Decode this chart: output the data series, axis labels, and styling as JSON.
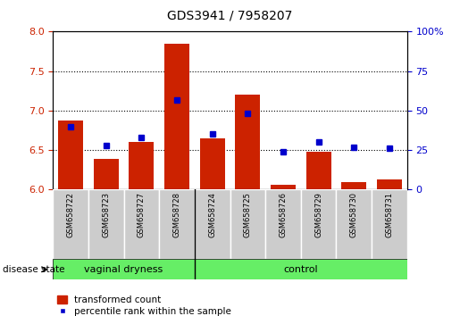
{
  "title": "GDS3941 / 7958207",
  "samples": [
    "GSM658722",
    "GSM658723",
    "GSM658727",
    "GSM658728",
    "GSM658724",
    "GSM658725",
    "GSM658726",
    "GSM658729",
    "GSM658730",
    "GSM658731"
  ],
  "transformed_count": [
    6.87,
    6.39,
    6.6,
    7.85,
    6.65,
    7.2,
    6.06,
    6.48,
    6.1,
    6.13
  ],
  "percentile_rank": [
    40,
    28,
    33,
    57,
    35,
    48,
    24,
    30,
    27,
    26
  ],
  "ylim_left": [
    6.0,
    8.0
  ],
  "ylim_right": [
    0,
    100
  ],
  "yticks_left": [
    6.0,
    6.5,
    7.0,
    7.5,
    8.0
  ],
  "yticks_right": [
    0,
    25,
    50,
    75,
    100
  ],
  "bar_color": "#cc2200",
  "dot_color": "#0000cc",
  "group1_label": "vaginal dryness",
  "group2_label": "control",
  "group1_count": 4,
  "group2_count": 6,
  "group_bar_color": "#66ee66",
  "disease_state_label": "disease state",
  "legend_bar_label": "transformed count",
  "legend_dot_label": "percentile rank within the sample",
  "tick_label_bg": "#cccccc",
  "separator_color": "#000000"
}
